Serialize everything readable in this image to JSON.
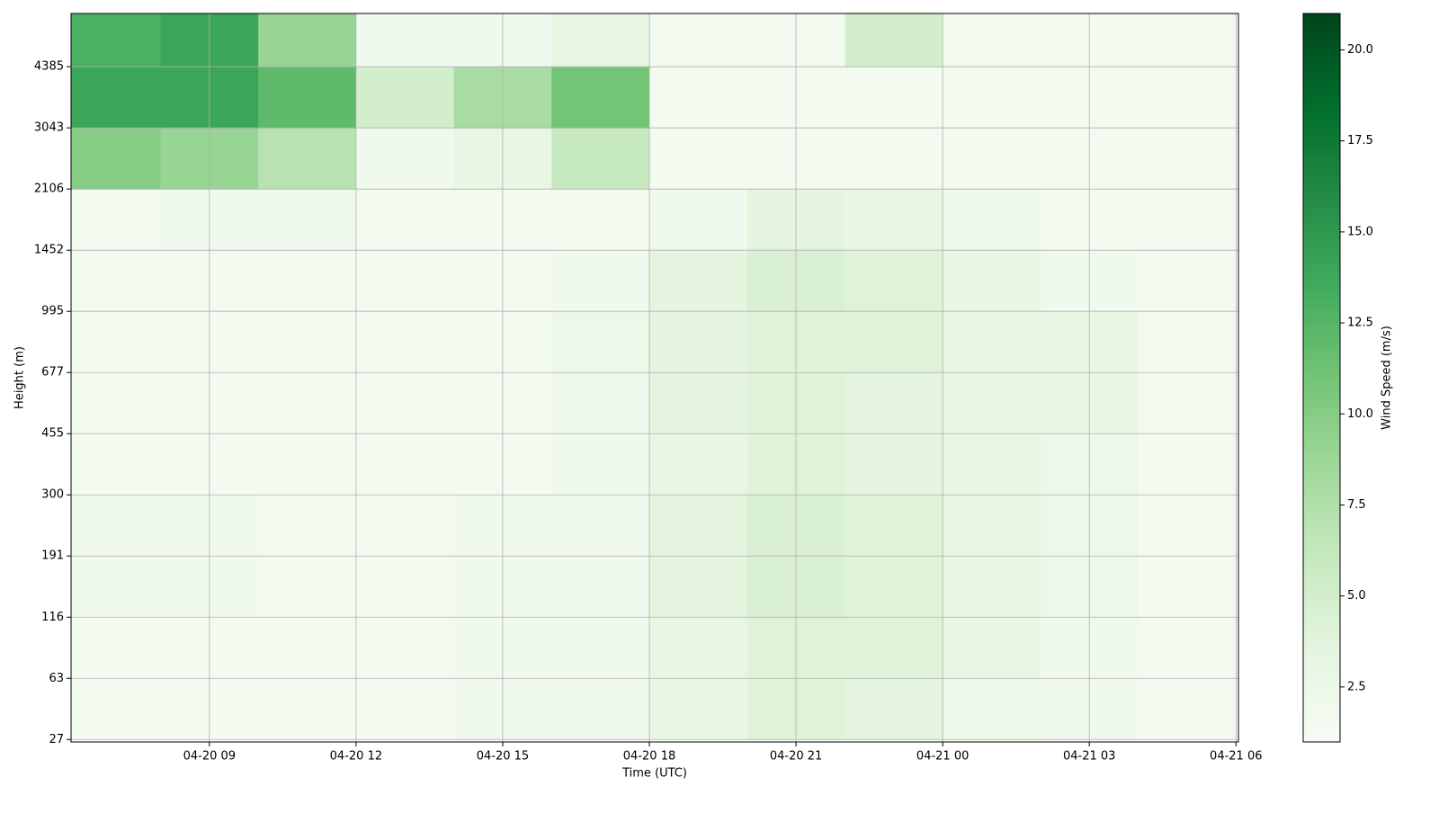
{
  "chart_data": {
    "type": "heatmap",
    "xlabel": "Time (UTC)",
    "ylabel": "Height (m)",
    "colorbar_label": "Wind Speed (m/s)",
    "colormap": "Greens",
    "grid": true,
    "xlim": [
      6.17,
      30.05
    ],
    "xticks": [
      {
        "value": 9,
        "label": "04-20 09"
      },
      {
        "value": 12,
        "label": "04-20 12"
      },
      {
        "value": 15,
        "label": "04-20 15"
      },
      {
        "value": 18,
        "label": "04-20 18"
      },
      {
        "value": 21,
        "label": "04-20 21"
      },
      {
        "value": 24,
        "label": "04-21 00"
      },
      {
        "value": 27,
        "label": "04-21 03"
      },
      {
        "value": 30,
        "label": "04-21 06"
      }
    ],
    "ylim": [
      -0.04,
      11.87
    ],
    "yticks": [
      {
        "value": 0,
        "label": "27"
      },
      {
        "value": 1,
        "label": "63"
      },
      {
        "value": 2,
        "label": "116"
      },
      {
        "value": 3,
        "label": "191"
      },
      {
        "value": 4,
        "label": "300"
      },
      {
        "value": 5,
        "label": "455"
      },
      {
        "value": 6,
        "label": "677"
      },
      {
        "value": 7,
        "label": "995"
      },
      {
        "value": 8,
        "label": "1452"
      },
      {
        "value": 9,
        "label": "2106"
      },
      {
        "value": 10,
        "label": "3043"
      },
      {
        "value": 11,
        "label": "4385"
      }
    ],
    "clim": [
      0.99,
      21.0
    ],
    "cticks": [
      {
        "value": 2.5,
        "label": "2.5"
      },
      {
        "value": 5,
        "label": "5.0"
      },
      {
        "value": 7.5,
        "label": "7.5"
      },
      {
        "value": 10,
        "label": "10.0"
      },
      {
        "value": 12.5,
        "label": "12.5"
      },
      {
        "value": 15,
        "label": "15.0"
      },
      {
        "value": 17.5,
        "label": "17.5"
      },
      {
        "value": 20,
        "label": "20.0"
      }
    ],
    "x": [
      7,
      9,
      11,
      13,
      15,
      17,
      19,
      21,
      23,
      25,
      27,
      29
    ],
    "y": [
      0.5,
      1.5,
      2.5,
      3.5,
      4.5,
      5.5,
      6.5,
      7.5,
      8.5,
      9.5,
      10.5,
      11.5
    ],
    "z": [
      [
        1.5,
        1.5,
        1.5,
        1.5,
        2,
        2,
        3,
        4,
        3.5,
        2.5,
        2,
        1.5
      ],
      [
        1.5,
        1.5,
        1.5,
        1.5,
        2,
        2,
        3,
        4,
        4,
        3,
        2,
        1.5
      ],
      [
        2,
        2,
        1.5,
        1.5,
        2,
        2,
        3.5,
        4.5,
        4,
        3,
        2.5,
        1.5
      ],
      [
        2,
        2,
        1.5,
        1.5,
        2,
        2,
        3.5,
        4.5,
        4,
        3,
        2.5,
        1.5
      ],
      [
        1.5,
        1.5,
        1.5,
        1.5,
        1.5,
        2,
        3,
        4,
        3.5,
        3,
        2.5,
        1.5
      ],
      [
        1.5,
        1.5,
        1.5,
        1.5,
        1.5,
        2,
        3.5,
        4,
        3.5,
        3,
        3,
        1.5
      ],
      [
        1.5,
        1.5,
        1.5,
        1.5,
        1.5,
        2.5,
        3.5,
        4,
        4,
        3,
        3,
        1.5
      ],
      [
        1.5,
        1.5,
        1.5,
        1.5,
        1.5,
        2,
        3.5,
        4.5,
        4,
        3,
        2,
        1.5
      ],
      [
        1.5,
        2,
        2,
        1.5,
        1.5,
        1.5,
        2,
        3.5,
        3,
        2,
        1.5,
        1.5
      ],
      [
        10,
        9,
        7,
        2,
        3,
        6,
        1.5,
        1.5,
        1.5,
        1.5,
        1.5,
        1.5
      ],
      [
        14,
        14,
        12,
        5,
        8,
        11,
        1.5,
        1.5,
        1.5,
        1.5,
        1.5,
        1.5
      ],
      [
        13,
        14,
        9,
        2,
        2,
        3,
        1.5,
        1.5,
        5,
        1.5,
        1.5,
        1.5
      ]
    ]
  }
}
